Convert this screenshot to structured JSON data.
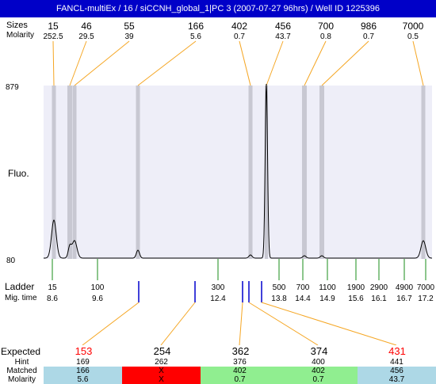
{
  "title": "FANCL-multiEx / 16 / siCCNH_global_1|PC 3 (2007-07-27 96hrs) / Well ID 1225396",
  "top_rows": {
    "size_label": "Sizes",
    "molarity_label": "Molarity"
  },
  "y_axis": {
    "label": "Fluo.",
    "max_label": "879",
    "min_label": "80"
  },
  "ladder_labels": {
    "ladder": "Ladder",
    "mig_time": "Mig. time"
  },
  "colors": {
    "title_bar": "#0000c8",
    "plot_bg": "#eeeef8",
    "band": "#c8c8d2",
    "orange": "#f5a623",
    "green": "#1a8c1a",
    "blue": "#0000cc",
    "hint_red": "#ff0000",
    "match_blue": "#add8e6",
    "match_red": "#ff0000",
    "match_green": "#90ee90"
  },
  "chart_data": {
    "type": "line",
    "title": "FANCL-multiEx / 16 / siCCNH_global_1|PC 3 (2007-07-27 96hrs) / Well ID 1225396",
    "ylabel": "Fluo.",
    "ylim": [
      80,
      879
    ],
    "peaks": [
      {
        "size": "15",
        "molarity": "252.5"
      },
      {
        "size": "46",
        "molarity": "29.5"
      },
      {
        "size": "55",
        "molarity": "39"
      },
      {
        "size": "166",
        "molarity": "5.6"
      },
      {
        "size": "402",
        "molarity": "0.7"
      },
      {
        "size": "456",
        "molarity": "43.7"
      },
      {
        "size": "700",
        "molarity": "0.8"
      },
      {
        "size": "986",
        "molarity": "0.7"
      },
      {
        "size": "7000",
        "molarity": "0.5"
      }
    ],
    "ladder": [
      {
        "size": "15",
        "time": "8.6"
      },
      {
        "size": "100",
        "time": "9.6"
      },
      {
        "size": "300",
        "time": "12.4"
      },
      {
        "size": "500",
        "time": "13.8"
      },
      {
        "size": "700",
        "time": "14.4"
      },
      {
        "size": "1100",
        "time": "14.9"
      },
      {
        "size": "1900",
        "time": "15.6"
      },
      {
        "size": "2900",
        "time": "16.1"
      },
      {
        "size": "4900",
        "time": "16.7"
      },
      {
        "size": "7000",
        "time": "17.2"
      }
    ]
  },
  "results": {
    "labels": {
      "expected": "Expected",
      "hint": "Hint",
      "matched": "Matched",
      "molarity": "Molarity"
    },
    "columns": [
      {
        "expected": "153",
        "hint": "169",
        "matched": "166",
        "molarity": "5.6",
        "status": "blue",
        "expected_red": true
      },
      {
        "expected": "254",
        "hint": "262",
        "matched": "X",
        "molarity": "X",
        "status": "red",
        "expected_red": false
      },
      {
        "expected": "362",
        "hint": "376",
        "matched": "402",
        "molarity": "0.7",
        "status": "green",
        "expected_red": false
      },
      {
        "expected": "374",
        "hint": "400",
        "matched": "402",
        "molarity": "0.7",
        "status": "green",
        "expected_red": false
      },
      {
        "expected": "431",
        "hint": "441",
        "matched": "456",
        "molarity": "43.7",
        "status": "blue",
        "expected_red": true
      }
    ]
  }
}
